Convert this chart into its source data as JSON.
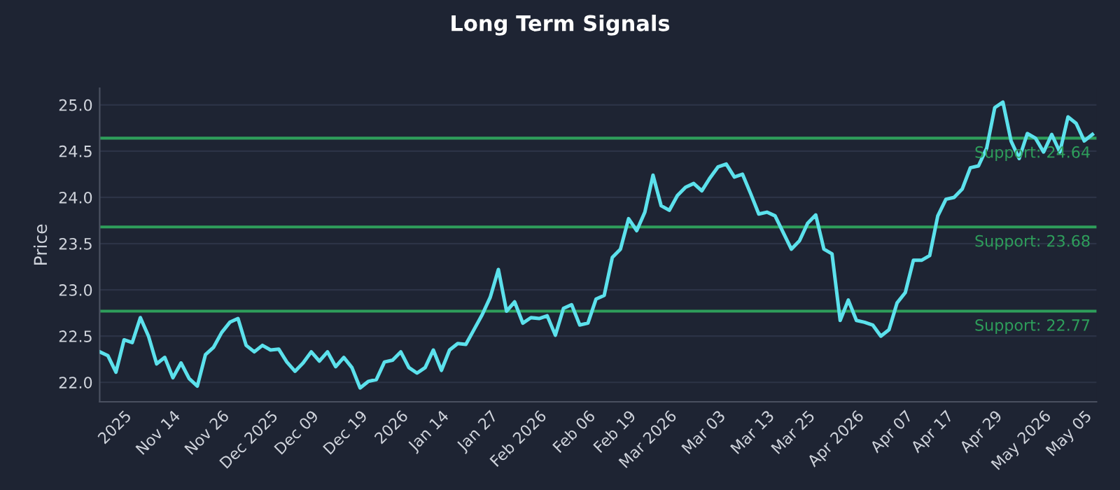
{
  "chart_data": {
    "type": "line",
    "title": "Long Term Signals",
    "ylabel": "Price",
    "categories": [
      null,
      null,
      null,
      "2025",
      null,
      null,
      null,
      null,
      null,
      "Nov 14",
      null,
      null,
      null,
      null,
      null,
      "Nov 26",
      null,
      null,
      null,
      null,
      null,
      "Dec 2025",
      null,
      null,
      null,
      null,
      "Dec 09",
      null,
      null,
      null,
      null,
      null,
      "Dec 19",
      null,
      null,
      null,
      null,
      "2026",
      null,
      null,
      null,
      null,
      "Jan 14",
      null,
      null,
      null,
      null,
      null,
      "Jan 27",
      null,
      null,
      null,
      null,
      null,
      "Feb 2026",
      null,
      null,
      null,
      null,
      null,
      "Feb 06",
      null,
      null,
      null,
      null,
      "Feb 19",
      null,
      null,
      null,
      null,
      "Mar 2026",
      null,
      null,
      null,
      null,
      null,
      "Mar 03",
      null,
      null,
      null,
      null,
      null,
      "Mar 13",
      null,
      null,
      null,
      null,
      "Mar 25",
      null,
      null,
      null,
      null,
      null,
      "Apr 2026",
      null,
      null,
      null,
      null,
      null,
      "Apr 07",
      null,
      null,
      null,
      null,
      "Apr 17",
      null,
      null,
      null,
      null,
      null,
      "Apr 29",
      null,
      null,
      null,
      null,
      null,
      "May 2026",
      null,
      null,
      null,
      null,
      "May 05",
      null
    ],
    "series": [
      {
        "color": "#5ce1ec",
        "values": [
          22.33,
          22.29,
          22.11,
          22.46,
          22.43,
          22.7,
          22.5,
          22.2,
          22.27,
          22.05,
          22.21,
          22.04,
          21.96,
          22.3,
          22.38,
          22.54,
          22.65,
          22.69,
          22.4,
          22.33,
          22.4,
          22.35,
          22.36,
          22.22,
          22.12,
          22.21,
          22.33,
          22.23,
          22.33,
          22.17,
          22.27,
          22.16,
          21.94,
          22.01,
          22.03,
          22.22,
          22.24,
          22.33,
          22.16,
          22.1,
          22.16,
          22.35,
          22.13,
          22.35,
          22.42,
          22.41,
          22.57,
          22.73,
          22.92,
          23.22,
          22.77,
          22.87,
          22.64,
          22.7,
          22.69,
          22.72,
          22.51,
          22.8,
          22.84,
          22.62,
          22.64,
          22.9,
          22.94,
          23.35,
          23.44,
          23.77,
          23.64,
          23.84,
          24.24,
          23.91,
          23.86,
          24.02,
          24.11,
          24.15,
          24.07,
          24.21,
          24.33,
          24.36,
          24.22,
          24.25,
          24.04,
          23.82,
          23.84,
          23.8,
          23.62,
          23.44,
          23.53,
          23.72,
          23.81,
          23.44,
          23.39,
          22.67,
          22.89,
          22.67,
          22.65,
          22.62,
          22.5,
          22.57,
          22.86,
          22.97,
          23.32,
          23.32,
          23.37,
          23.8,
          23.98,
          24.0,
          24.09,
          24.32,
          24.34,
          24.53,
          24.97,
          25.03,
          24.61,
          24.42,
          24.69,
          24.64,
          24.49,
          24.68,
          24.49,
          24.87,
          24.8,
          24.61,
          24.68
        ]
      }
    ],
    "ylim": [
      21.79,
      25.18
    ],
    "yticks": [
      {
        "value": 22,
        "label": "22.0"
      },
      {
        "value": 22.5,
        "label": "22.5"
      },
      {
        "value": 23,
        "label": "23.0"
      },
      {
        "value": 23.5,
        "label": "23.5"
      },
      {
        "value": 24,
        "label": "24.0"
      },
      {
        "value": 24.5,
        "label": "24.5"
      },
      {
        "value": 25,
        "label": "25.0"
      }
    ],
    "grid": "y",
    "ref_lines": [
      {
        "axis": "y",
        "value": 24.64,
        "label": "Support: 24.64",
        "color": "#2e9e5b"
      },
      {
        "axis": "y",
        "value": 23.68,
        "label": "Support: 23.68",
        "color": "#2e9e5b"
      },
      {
        "axis": "y",
        "value": 22.77,
        "label": "Support: 22.77",
        "color": "#2e9e5b"
      }
    ]
  }
}
